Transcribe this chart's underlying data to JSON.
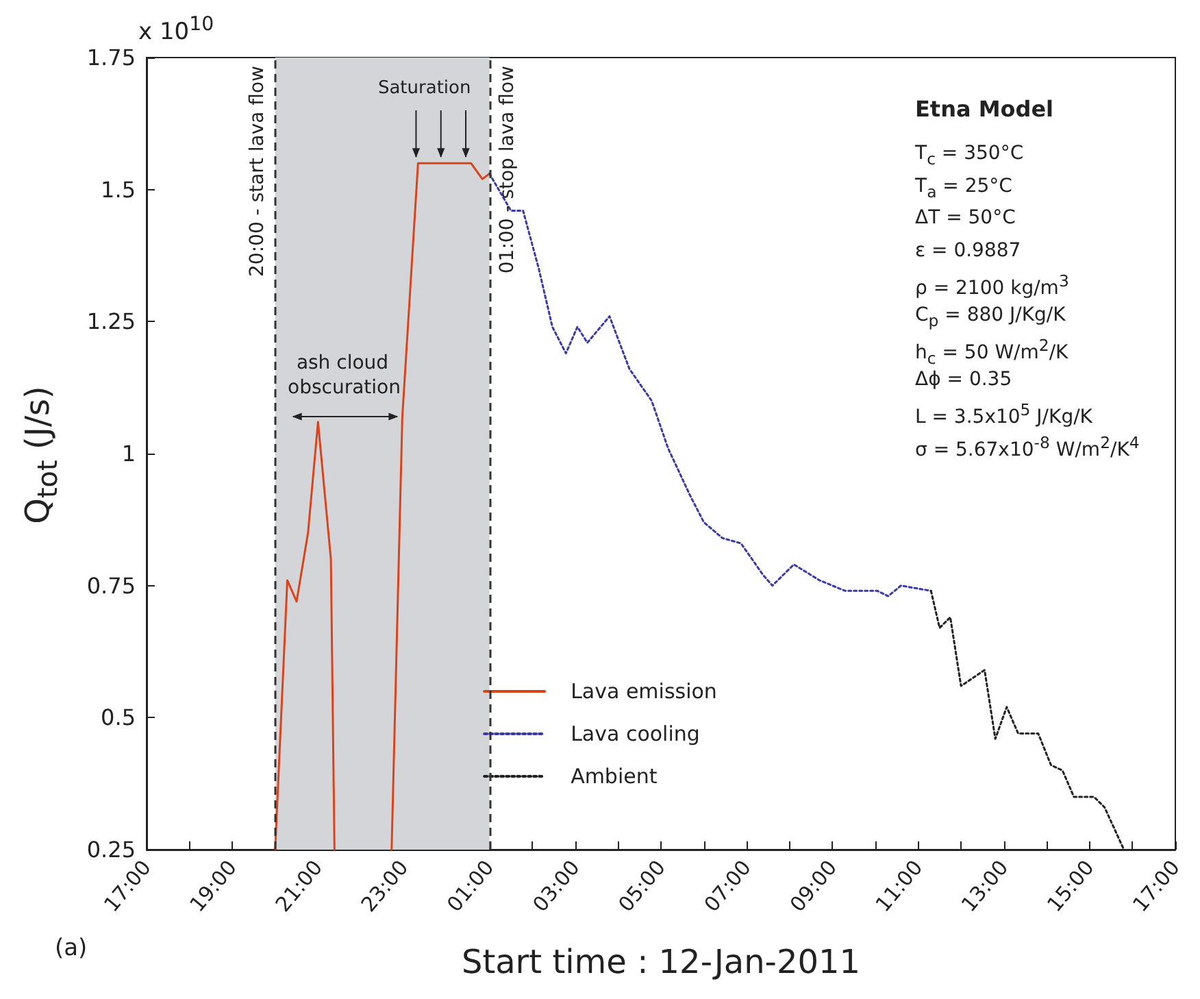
{
  "chart_data": {
    "type": "line",
    "xlabel": "Start time : 12-Jan-2011",
    "ylabel": "Q$_{tot}$ (J/s)",
    "xlim": [
      "2011-01-12T17:00",
      "2011-01-13T17:00"
    ],
    "ylim": [
      0.25,
      1.75
    ],
    "xticks": [
      {
        "value": "2011-01-12T17:00",
        "label": "17:00"
      },
      {
        "value": "2011-01-12T18:00",
        "label": null
      },
      {
        "value": "2011-01-12T19:00",
        "label": "19:00"
      },
      {
        "value": "2011-01-12T20:00",
        "label": null
      },
      {
        "value": "2011-01-12T21:00",
        "label": "21:00"
      },
      {
        "value": "2011-01-12T22:00",
        "label": null
      },
      {
        "value": "2011-01-12T23:00",
        "label": "23:00"
      },
      {
        "value": "2011-01-13T00:00",
        "label": null
      },
      {
        "value": "2011-01-13T01:00",
        "label": "01:00"
      },
      {
        "value": "2011-01-13T02:00",
        "label": null
      },
      {
        "value": "2011-01-13T03:00",
        "label": "03:00"
      },
      {
        "value": "2011-01-13T04:00",
        "label": null
      },
      {
        "value": "2011-01-13T05:00",
        "label": "05:00"
      },
      {
        "value": "2011-01-13T06:00",
        "label": null
      },
      {
        "value": "2011-01-13T07:00",
        "label": "07:00"
      },
      {
        "value": "2011-01-13T08:00",
        "label": null
      },
      {
        "value": "2011-01-13T09:00",
        "label": "09:00"
      },
      {
        "value": "2011-01-13T10:00",
        "label": null
      },
      {
        "value": "2011-01-13T11:00",
        "label": "11:00"
      },
      {
        "value": "2011-01-13T12:00",
        "label": null
      },
      {
        "value": "2011-01-13T13:00",
        "label": "13:00"
      },
      {
        "value": "2011-01-13T14:00",
        "label": null
      },
      {
        "value": "2011-01-13T15:00",
        "label": "15:00"
      },
      {
        "value": "2011-01-13T16:00",
        "label": null
      },
      {
        "value": "2011-01-13T17:00",
        "label": "17:00"
      }
    ],
    "yticks": [
      0.25,
      0.5,
      0.75,
      1,
      1.25,
      1.5,
      1.75
    ],
    "grid": false,
    "legend": "bottom",
    "marker": "none",
    "series": [
      {
        "name": "Lava emission",
        "color": "#d9441c",
        "line_style": "solid",
        "x": [
          "2011-01-12T20:00",
          "2011-01-12T20:17",
          "2011-01-12T20:30",
          "2011-01-12T20:46",
          "2011-01-12T21:00",
          "2011-01-12T21:18",
          "2011-01-12T21:23",
          "2011-01-12T22:00",
          "2011-01-12T22:43",
          "2011-01-12T22:58",
          "2011-01-12T23:20",
          "2011-01-13T00:34",
          "2011-01-13T00:50",
          "2011-01-13T01:00"
        ],
        "values": [
          0.25,
          0.76,
          0.72,
          0.85,
          1.06,
          0.8,
          0.25,
          null,
          0.25,
          1.07,
          1.55,
          1.55,
          1.52,
          1.53
        ]
      },
      {
        "name": "Lava cooling",
        "color": "#3a3aa8",
        "line_style": "dotted",
        "x": [
          "2011-01-13T01:00",
          "2011-01-13T01:30",
          "2011-01-13T01:47",
          "2011-01-13T02:09",
          "2011-01-13T02:28",
          "2011-01-13T02:47",
          "2011-01-13T03:03",
          "2011-01-13T03:17",
          "2011-01-13T03:48",
          "2011-01-13T04:16",
          "2011-01-13T04:47",
          "2011-01-13T05:10",
          "2011-01-13T05:41",
          "2011-01-13T06:00",
          "2011-01-13T06:26",
          "2011-01-13T06:52",
          "2011-01-13T07:23",
          "2011-01-13T07:36",
          "2011-01-13T08:06",
          "2011-01-13T08:42",
          "2011-01-13T09:18",
          "2011-01-13T10:03",
          "2011-01-13T10:18",
          "2011-01-13T10:36",
          "2011-01-13T11:18"
        ],
        "values": [
          1.53,
          1.46,
          1.46,
          1.35,
          1.24,
          1.19,
          1.24,
          1.21,
          1.26,
          1.16,
          1.1,
          1.01,
          0.92,
          0.87,
          0.84,
          0.83,
          0.77,
          0.75,
          0.79,
          0.76,
          0.74,
          0.74,
          0.73,
          0.75,
          0.74
        ]
      },
      {
        "name": "Ambient",
        "color": "#222222",
        "line_style": "dotted",
        "x": [
          "2011-01-13T11:18",
          "2011-01-13T11:30",
          "2011-01-13T11:45",
          "2011-01-13T12:00",
          "2011-01-13T12:33",
          "2011-01-13T12:48",
          "2011-01-13T13:04",
          "2011-01-13T13:20",
          "2011-01-13T13:48",
          "2011-01-13T14:06",
          "2011-01-13T14:22",
          "2011-01-13T14:38",
          "2011-01-13T15:06",
          "2011-01-13T15:21",
          "2011-01-13T15:48"
        ],
        "values": [
          0.74,
          0.67,
          0.69,
          0.56,
          0.59,
          0.46,
          0.52,
          0.47,
          0.47,
          0.41,
          0.4,
          0.35,
          0.35,
          0.33,
          0.25
        ]
      }
    ],
    "bands": [
      {
        "axis": "x",
        "from": "2011-01-12T20:00",
        "to": "2011-01-13T01:00",
        "color": "#d4d5d9"
      }
    ],
    "ref_lines": [
      {
        "axis": "x",
        "value": "2011-01-12T20:00",
        "label": "20:00 - start lava flow",
        "color": "#333333",
        "line_style": "dashed"
      },
      {
        "axis": "x",
        "value": "2011-01-13T01:00",
        "label": "01:00 - stop lava flow",
        "color": "#333333",
        "line_style": "dashed"
      }
    ],
    "annotations": [
      "x 10$^{10}$",
      "(a)",
      "Etna Model",
      "T$_{c}$ = 350°C",
      "T$_{a}$ = 25°C",
      "ΔT = 50°C",
      "ε = 0.9887",
      "ρ = 2100 kg/m$^{3}$",
      "C$_{p}$ = 880 J/Kg/K",
      "h$_{c}$ = 50 W/m$^{2}$/K",
      "Δϕ = 0.35",
      "L = 3.5x10$^{5}$ J/Kg/K",
      "σ = 5.67x10$^{-8}$ W/m$^{2}$/K$^{4}$",
      "ash cloud obscuration",
      {
        "text": "Saturation",
        "x": "2011-01-12T23:52",
        "y": 1.55
      }
    ]
  }
}
